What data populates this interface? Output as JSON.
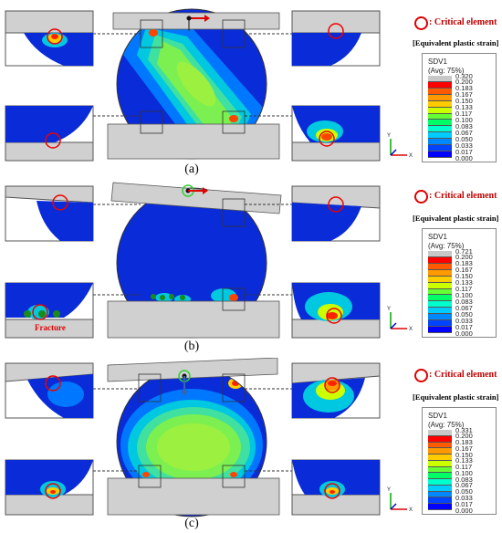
{
  "critical_element_label": ": Critical element",
  "strain_label": "[Equivalent plastic strain]",
  "legend_title_1": "SDV1",
  "legend_title_2": "(Avg: 75%)",
  "legend_colors": [
    "#c8c8c8",
    "#ff0000",
    "#ff5a00",
    "#ff9900",
    "#ffcc00",
    "#ccff00",
    "#66ff33",
    "#00ff66",
    "#00ffcc",
    "#00ccff",
    "#0088ff",
    "#0044ff",
    "#0000ff"
  ],
  "axes": {
    "y": "Y",
    "x": "X"
  },
  "fracture_label": "Fracture",
  "panels": [
    {
      "label": "(a)",
      "legend_values": [
        "0.320",
        "0.200",
        "0.183",
        "0.167",
        "0.150",
        "0.133",
        "0.117",
        "0.100",
        "0.083",
        "0.067",
        "0.050",
        "0.033",
        "0.017",
        "0.000"
      ]
    },
    {
      "label": "(b)",
      "legend_values": [
        "0.721",
        "0.200",
        "0.183",
        "0.167",
        "0.150",
        "0.133",
        "0.117",
        "0.100",
        "0.083",
        "0.067",
        "0.050",
        "0.033",
        "0.017",
        "0.000"
      ]
    },
    {
      "label": "(c)",
      "legend_values": [
        "0.331",
        "0.200",
        "0.183",
        "0.167",
        "0.150",
        "0.133",
        "0.117",
        "0.100",
        "0.083",
        "0.067",
        "0.050",
        "0.033",
        "0.017",
        "0.000"
      ]
    }
  ]
}
